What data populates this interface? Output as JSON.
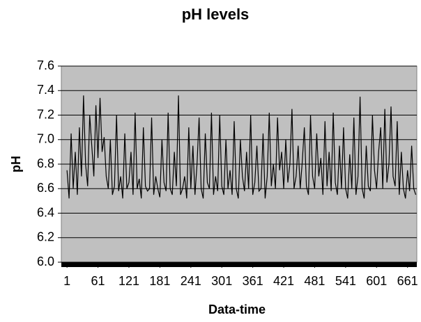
{
  "chart_data": {
    "type": "line",
    "title": "pH levels",
    "x_label": "Data-time",
    "y_label": "pH",
    "color": "#000000",
    "background": "#c0c0c0",
    "grid": true,
    "xlim": [
      -10,
      679
    ],
    "xticks": [
      1,
      61,
      121,
      181,
      241,
      301,
      361,
      421,
      481,
      541,
      601,
      661
    ],
    "ylim": [
      6,
      7.6
    ],
    "yticks": [
      {
        "value": 6,
        "label": "6.0"
      },
      6.2,
      6.4,
      6.6,
      6.8,
      {
        "value": 7,
        "label": "7.0"
      },
      7.2,
      7.4,
      7.6
    ],
    "x": [
      1,
      5,
      9,
      13,
      17,
      21,
      25,
      29,
      33,
      37,
      41,
      45,
      49,
      53,
      57,
      61,
      65,
      69,
      73,
      77,
      81,
      85,
      89,
      93,
      97,
      101,
      105,
      109,
      113,
      117,
      121,
      125,
      129,
      133,
      137,
      141,
      145,
      149,
      153,
      157,
      161,
      165,
      169,
      173,
      177,
      181,
      185,
      189,
      193,
      197,
      201,
      205,
      209,
      213,
      217,
      221,
      225,
      229,
      233,
      237,
      241,
      245,
      249,
      253,
      257,
      261,
      265,
      269,
      273,
      277,
      281,
      285,
      289,
      293,
      297,
      301,
      305,
      309,
      313,
      317,
      321,
      325,
      329,
      333,
      337,
      341,
      345,
      349,
      353,
      357,
      361,
      365,
      369,
      373,
      377,
      381,
      385,
      389,
      393,
      397,
      401,
      405,
      409,
      413,
      417,
      421,
      425,
      429,
      433,
      437,
      441,
      445,
      449,
      453,
      457,
      461,
      465,
      469,
      473,
      477,
      481,
      485,
      489,
      493,
      497,
      501,
      505,
      509,
      513,
      517,
      521,
      525,
      529,
      533,
      537,
      541,
      545,
      549,
      553,
      557,
      561,
      565,
      569,
      573,
      577,
      581,
      585,
      589,
      593,
      597,
      601,
      605,
      609,
      613,
      617,
      621,
      625,
      629,
      633,
      637,
      641,
      645,
      649,
      653,
      657,
      661,
      665,
      669,
      673,
      677
    ],
    "values": [
      6.75,
      6.52,
      7.05,
      6.6,
      6.9,
      6.55,
      7.1,
      6.7,
      7.36,
      6.8,
      6.62,
      7.2,
      6.95,
      6.7,
      7.28,
      6.85,
      7.34,
      6.9,
      7.02,
      6.7,
      6.6,
      7.0,
      6.55,
      6.62,
      7.2,
      6.58,
      6.7,
      6.52,
      7.05,
      6.6,
      6.65,
      6.9,
      6.55,
      7.22,
      6.6,
      6.68,
      6.52,
      7.1,
      6.62,
      6.58,
      6.6,
      7.18,
      6.55,
      6.7,
      6.6,
      6.53,
      7.0,
      6.65,
      6.58,
      7.22,
      6.6,
      6.55,
      6.9,
      6.62,
      7.36,
      6.55,
      6.6,
      6.7,
      6.52,
      7.1,
      6.6,
      6.95,
      6.55,
      6.8,
      7.18,
      6.6,
      6.52,
      7.05,
      6.65,
      6.6,
      7.22,
      6.55,
      6.7,
      6.58,
      7.2,
      6.62,
      6.55,
      7.0,
      6.6,
      6.75,
      6.55,
      7.15,
      6.6,
      6.52,
      7.0,
      6.7,
      6.58,
      6.9,
      6.6,
      7.2,
      6.55,
      6.65,
      6.95,
      6.58,
      6.6,
      7.05,
      6.52,
      6.7,
      7.22,
      6.62,
      6.8,
      6.6,
      7.18,
      6.75,
      6.9,
      6.6,
      7.0,
      6.65,
      6.8,
      7.25,
      6.6,
      6.7,
      6.95,
      6.6,
      6.82,
      7.1,
      6.62,
      6.55,
      7.2,
      6.7,
      6.6,
      7.05,
      6.7,
      6.85,
      6.55,
      7.15,
      6.62,
      6.9,
      6.58,
      7.22,
      6.65,
      6.55,
      6.95,
      6.6,
      7.1,
      6.6,
      6.52,
      6.88,
      6.6,
      7.18,
      6.55,
      6.7,
      7.35,
      6.6,
      6.52,
      6.95,
      6.62,
      6.58,
      7.2,
      6.75,
      6.6,
      6.9,
      7.1,
      6.6,
      7.25,
      6.65,
      6.8,
      7.27,
      6.7,
      6.62,
      7.15,
      6.55,
      6.9,
      6.6,
      6.52,
      6.75,
      6.58,
      6.95,
      6.6,
      6.55
    ]
  }
}
